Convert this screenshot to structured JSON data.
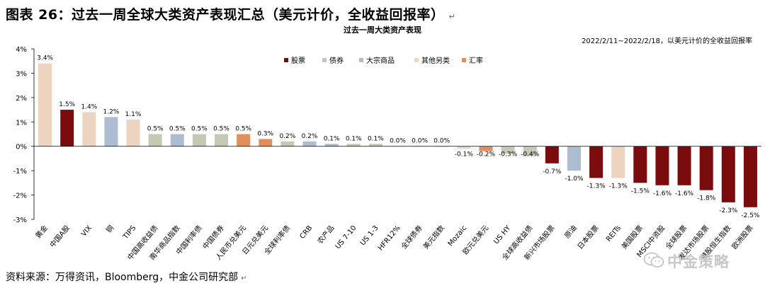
{
  "heading": "图表 26：过去一周全球大类资产表现汇总（美元计价，全收益回报率）",
  "paragraph_mark": "↵",
  "source_note": "资料来源：万得资讯，Bloomberg，中金公司研究部",
  "watermark": "中金策略",
  "chart_data": {
    "type": "bar",
    "title": "过去一周大类资产表现",
    "subtitle": "2022/2/11~2022/2/18，以美元计价的全收益回报率",
    "ylim": [
      -3,
      4
    ],
    "yticks": [
      "-3%",
      "-2%",
      "-1%",
      "0%",
      "1%",
      "2%",
      "3%",
      "4%"
    ],
    "grid": false,
    "legend_placement": "top",
    "legend": [
      {
        "name": "股票",
        "color": "#7b0c0e"
      },
      {
        "name": "债券",
        "color": "#c5c8b2"
      },
      {
        "name": "大宗商品",
        "color": "#acbdd2"
      },
      {
        "name": "其他另类",
        "color": "#ecd4c0"
      },
      {
        "name": "汇率",
        "color": "#e38f5c"
      }
    ],
    "categories": [
      "黄金",
      "中国A股",
      "VIX",
      "铜",
      "TIPS",
      "中国高收益债",
      "南华商品指数",
      "中国利率债",
      "中国债券",
      "人民币兑美元",
      "日元兑美元",
      "全球利率债",
      "CRB",
      "农产品",
      "US 7-10",
      "US 1-3",
      "HFR12%",
      "全球债券",
      "美元指数",
      "Mozaic",
      "欧元兑美元",
      "US HY",
      "全球高收益债",
      "新兴市场股票",
      "原油",
      "日本股票",
      "REITs",
      "美国股票",
      "MSCI中资股",
      "全球股票",
      "发达市场股票",
      "港股恒生指数",
      "欧洲股票"
    ],
    "values": [
      3.4,
      1.5,
      1.4,
      1.2,
      1.1,
      0.5,
      0.5,
      0.5,
      0.5,
      0.5,
      0.3,
      0.2,
      0.2,
      0.1,
      0.1,
      0.1,
      0.0,
      0.0,
      0.0,
      -0.1,
      -0.2,
      -0.3,
      -0.4,
      -0.7,
      -1.0,
      -1.3,
      -1.3,
      -1.5,
      -1.6,
      -1.6,
      -1.8,
      -2.3,
      -2.5
    ],
    "data_labels": [
      "3.4%",
      "1.5%",
      "1.4%",
      "1.2%",
      "1.1%",
      "0.5%",
      "0.5%",
      "0.5%",
      "0.5%",
      "0.5%",
      "0.3%",
      "0.2%",
      "0.2%",
      "0.1%",
      "0.1%",
      "0.1%",
      "0.0%",
      "0.0%",
      "0.0%",
      "-0.1%",
      "-0.2%",
      "-0.3%",
      "-0.4%",
      "-0.7%",
      "-1.0%",
      "-1.3%",
      "-1.3%",
      "-1.5%",
      "-1.6%",
      "-1.6%",
      "-1.8%",
      "-2.3%",
      "-2.5%"
    ],
    "asset_class": [
      "其他另类",
      "股票",
      "其他另类",
      "大宗商品",
      "其他另类",
      "债券",
      "大宗商品",
      "债券",
      "债券",
      "汇率",
      "汇率",
      "债券",
      "大宗商品",
      "大宗商品",
      "债券",
      "债券",
      "其他另类",
      "债券",
      "汇率",
      "其他另类",
      "汇率",
      "债券",
      "债券",
      "股票",
      "大宗商品",
      "股票",
      "其他另类",
      "股票",
      "股票",
      "股票",
      "股票",
      "股票",
      "股票"
    ]
  }
}
